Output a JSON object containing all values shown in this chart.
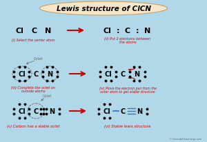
{
  "title": "Lewis structure of ClCN",
  "bg_color": "#b0d8e8",
  "title_bg": "#f5e6c8",
  "title_border": "#c8a06e",
  "text_color": "#000000",
  "red_color": "#cc0000",
  "blue_color": "#4472c4",
  "gray_color": "#666666",
  "watermark": "© knordsilearning.com",
  "panel_labels": [
    "(i) Select the center atom",
    "(ii) Put 2 electrons between\nthe atoms",
    "(iii) Complete the octet on\noutside atoms",
    "(iv) Move the electron pair from the\nouter atom to get stable structure",
    "(v) Carbon has a stable octet",
    "(vi) Stable lewis structure"
  ]
}
